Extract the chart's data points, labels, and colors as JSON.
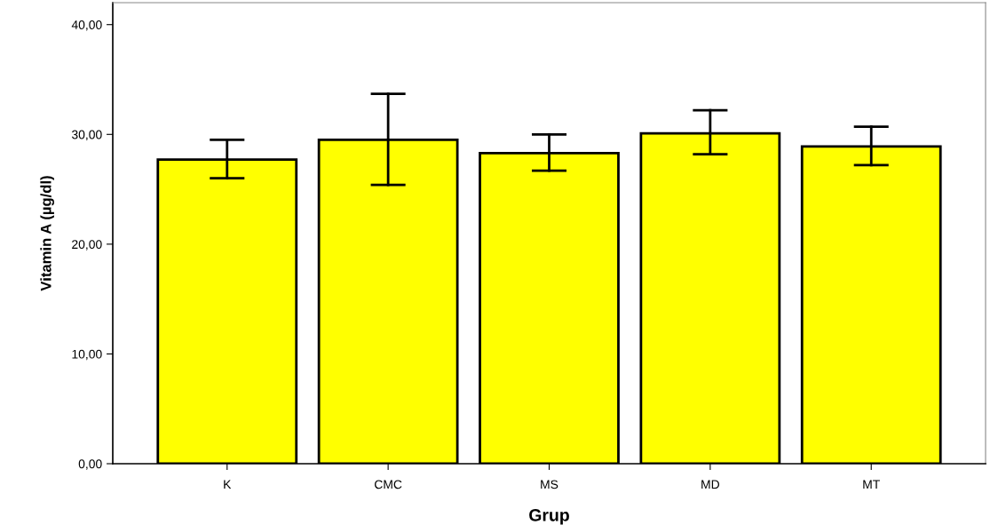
{
  "chart_data": {
    "type": "bar",
    "xlabel": "Grup",
    "ylabel": "Vitamin A (µg/dl)",
    "categories": [
      "K",
      "CMC",
      "MS",
      "MD",
      "MT"
    ],
    "values": [
      27.7,
      29.5,
      28.3,
      30.1,
      28.9
    ],
    "errors": [
      [
        26.0,
        29.5
      ],
      [
        25.4,
        33.7
      ],
      [
        26.7,
        30.0
      ],
      [
        28.2,
        32.2
      ],
      [
        27.2,
        30.7
      ]
    ],
    "color": "#ffff00",
    "ylim": [
      0,
      42
    ],
    "yticks": [
      {
        "value": 0,
        "label": "0,00"
      },
      {
        "value": 10,
        "label": "10,00"
      },
      {
        "value": 20,
        "label": "20,00"
      },
      {
        "value": 30,
        "label": "30,00"
      },
      {
        "value": 40,
        "label": "40,00"
      }
    ],
    "grid": false,
    "legend": false
  }
}
